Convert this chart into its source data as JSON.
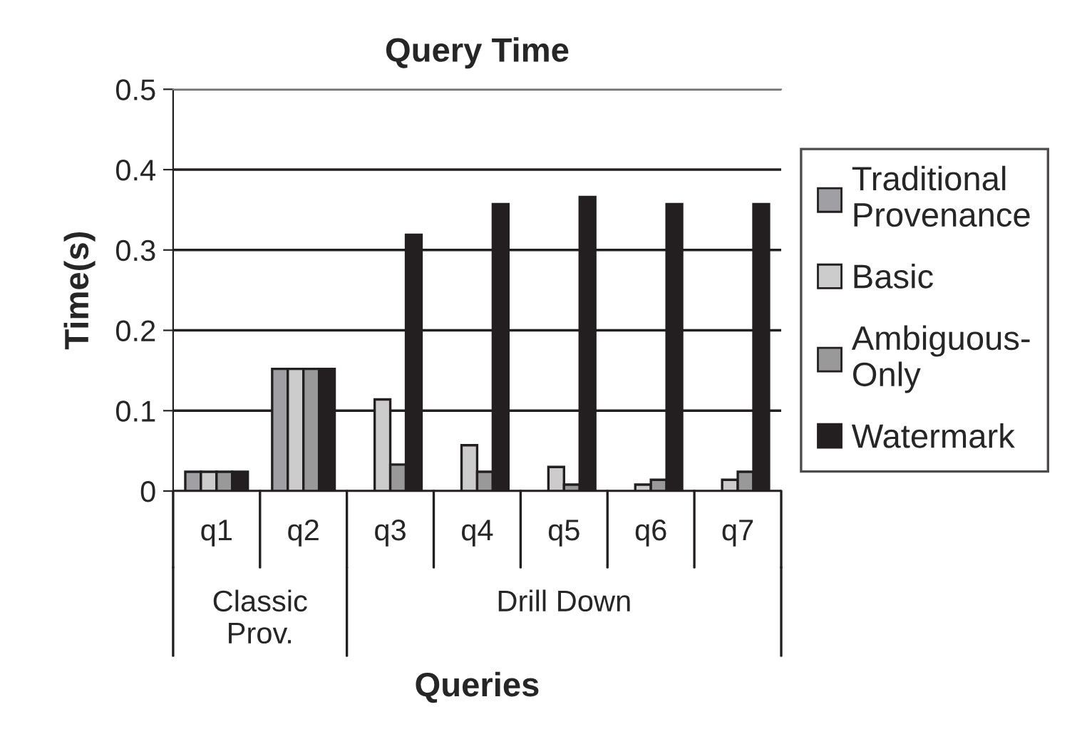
{
  "chart_data": {
    "type": "bar",
    "title": "Query Time",
    "xlabel": "Queries",
    "ylabel": "Time(s)",
    "categories": [
      "q1",
      "q2",
      "q3",
      "q4",
      "q5",
      "q6",
      "q7"
    ],
    "series": [
      {
        "name": "Traditional\nProvenance",
        "color": "#a0a0a4",
        "values": [
          0.024,
          0.152,
          null,
          null,
          null,
          null,
          null
        ]
      },
      {
        "name": "Basic",
        "color": "#cccccc",
        "values": [
          0.024,
          0.152,
          0.114,
          0.057,
          0.03,
          0.008,
          0.014
        ]
      },
      {
        "name": "Ambiguous-\nOnly",
        "color": "#999999",
        "values": [
          0.024,
          0.152,
          0.033,
          0.024,
          0.008,
          0.014,
          0.024
        ]
      },
      {
        "name": "Watermark",
        "color": "#231f20",
        "values": [
          0.024,
          0.152,
          0.319,
          0.357,
          0.366,
          0.357,
          0.357
        ]
      }
    ],
    "annotations": [
      "Classic Prov.",
      "Drill Down"
    ],
    "ylim": [
      0,
      0.5
    ],
    "yticks": [
      0,
      0.1,
      0.2,
      0.3,
      0.4,
      0.5
    ],
    "grid": "y",
    "legend": "right"
  }
}
